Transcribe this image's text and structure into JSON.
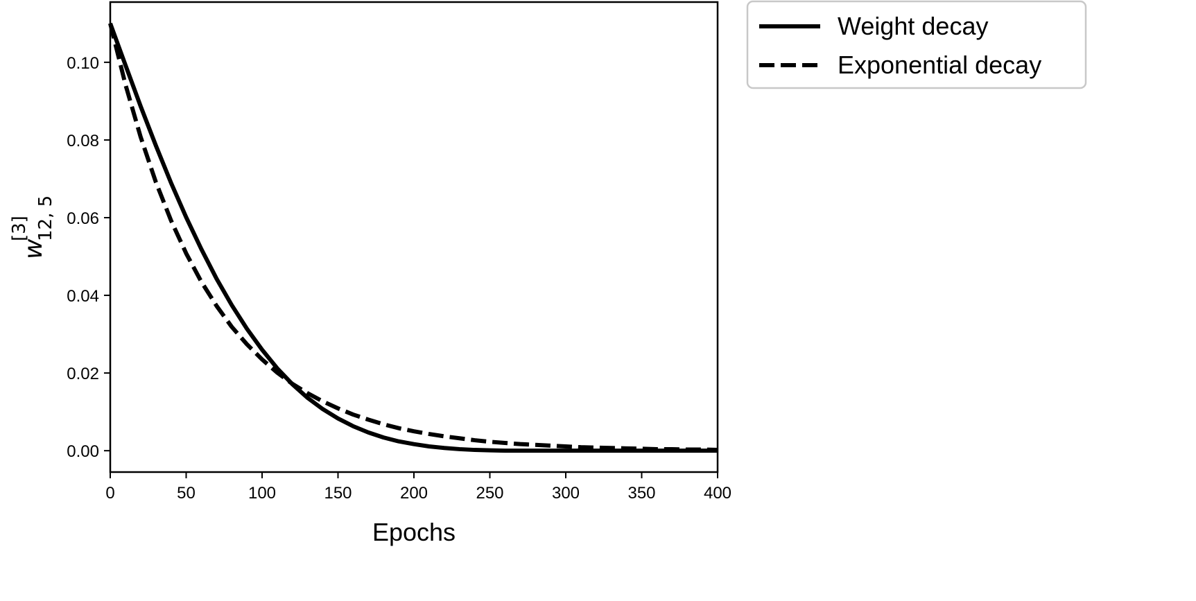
{
  "chart_data": {
    "type": "line",
    "xlabel": "Epochs",
    "ylabel": {
      "symbol": "w",
      "superscript": "[3]",
      "subscript": "12, 5"
    },
    "xlim": [
      0,
      400
    ],
    "ylim": [
      -0.0055,
      0.1155
    ],
    "xticks": [
      0,
      50,
      100,
      150,
      200,
      250,
      300,
      350,
      400
    ],
    "xtick_labels": [
      "0",
      "50",
      "100",
      "150",
      "200",
      "250",
      "300",
      "350",
      "400"
    ],
    "yticks": [
      0.0,
      0.02,
      0.04,
      0.06,
      0.08,
      0.1
    ],
    "ytick_labels": [
      "0.00",
      "0.02",
      "0.04",
      "0.06",
      "0.08",
      "0.10"
    ],
    "grid": false,
    "legend_position": "outside-top-right",
    "series": [
      {
        "name": "Weight decay",
        "style": "solid",
        "color": "#000000",
        "x": [
          0,
          10,
          20,
          30,
          40,
          50,
          60,
          70,
          80,
          90,
          100,
          110,
          120,
          130,
          140,
          150,
          160,
          170,
          180,
          190,
          200,
          210,
          220,
          230,
          240,
          250,
          260,
          270,
          280,
          290,
          300,
          310,
          320,
          330,
          340,
          350,
          360,
          370,
          380,
          390,
          400
        ],
        "y": [
          0.11,
          0.0993,
          0.0887,
          0.0786,
          0.069,
          0.0601,
          0.0519,
          0.0443,
          0.0375,
          0.0314,
          0.026,
          0.0212,
          0.0171,
          0.0136,
          0.0107,
          0.0083,
          0.0063,
          0.0047,
          0.0034,
          0.0024,
          0.0017,
          0.0011,
          0.0007,
          0.0004,
          0.0002,
          0.0001,
          0.0,
          0.0,
          0.0,
          0.0,
          0.0,
          0.0,
          0.0,
          0.0,
          0.0,
          0.0,
          0.0,
          0.0,
          0.0,
          0.0,
          0.0
        ]
      },
      {
        "name": "Exponential decay",
        "style": "dashed",
        "color": "#000000",
        "x": [
          0,
          10,
          20,
          30,
          40,
          50,
          60,
          70,
          80,
          90,
          100,
          110,
          120,
          130,
          140,
          150,
          160,
          170,
          180,
          190,
          200,
          210,
          220,
          230,
          240,
          250,
          260,
          270,
          280,
          290,
          300,
          310,
          320,
          330,
          340,
          350,
          360,
          370,
          380,
          390,
          400
        ],
        "y": [
          0.11,
          0.0943,
          0.0808,
          0.0692,
          0.0593,
          0.0508,
          0.0435,
          0.0373,
          0.0319,
          0.0274,
          0.0235,
          0.0201,
          0.0172,
          0.0148,
          0.0127,
          0.0109,
          0.0093,
          0.008,
          0.0068,
          0.0058,
          0.005,
          0.0043,
          0.0037,
          0.0032,
          0.0027,
          0.0023,
          0.002,
          0.0017,
          0.0015,
          0.0013,
          0.0011,
          0.0009,
          0.0008,
          0.0007,
          0.0006,
          0.0005,
          0.0004,
          0.0004,
          0.0003,
          0.0003,
          0.0002
        ]
      }
    ]
  }
}
